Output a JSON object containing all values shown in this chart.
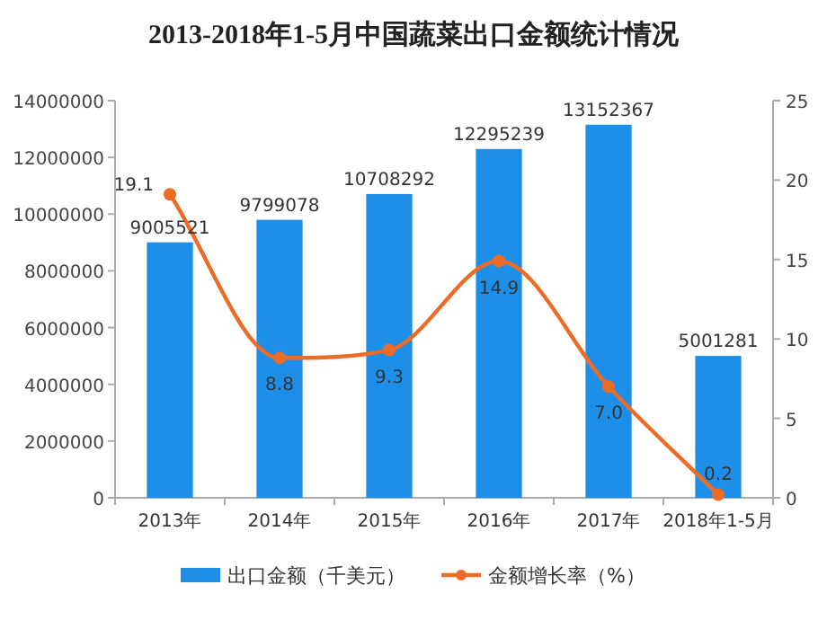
{
  "chart_data": {
    "type": "bar",
    "title": "2013-2018年1-5月中国蔬菜出口金额统计情况",
    "categories": [
      "2013年",
      "2014年",
      "2015年",
      "2016年",
      "2017年",
      "2018年1-5月"
    ],
    "series": [
      {
        "name": "出口金额（千美元）",
        "color": "#1e8fe8",
        "values": [
          9005521,
          9799078,
          10708292,
          12295239,
          13152367,
          5001281
        ],
        "value_labels": [
          "9005521",
          "9799078",
          "10708292",
          "12295239",
          "13152367",
          "5001281"
        ]
      },
      {
        "name": "金额增长率（%）",
        "type": "line",
        "axis": "y2",
        "color": "#ee6b25",
        "values": [
          19.1,
          8.8,
          9.3,
          14.9,
          7.0,
          0.2
        ],
        "value_labels": [
          "19.1",
          "8.8",
          "9.3",
          "14.9",
          "7.0",
          "0.2"
        ]
      }
    ],
    "ylim": [
      0,
      14000000
    ],
    "yticks": [
      0,
      2000000,
      4000000,
      6000000,
      8000000,
      10000000,
      12000000,
      14000000
    ],
    "y2lim": [
      0,
      25
    ],
    "y2ticks": [
      0,
      5,
      10,
      15,
      20,
      25
    ],
    "marker": "circle",
    "legend": "bottom",
    "grid": false
  }
}
